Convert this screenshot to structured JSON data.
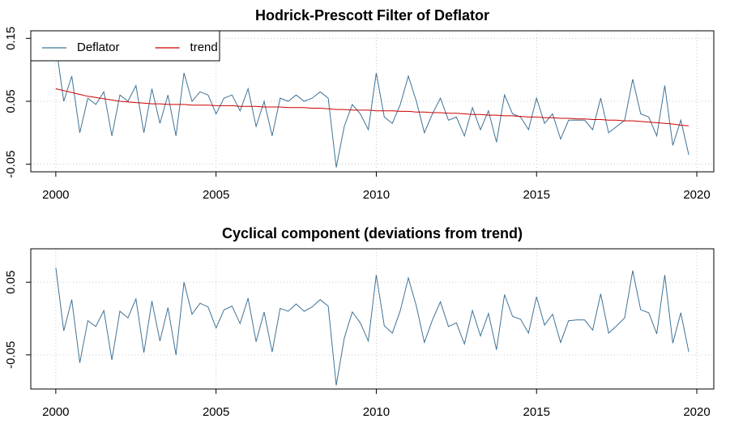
{
  "chart_data": [
    {
      "type": "line",
      "title": "Hodrick-Prescott Filter of Deflator",
      "x": [
        2000,
        2000.25,
        2000.5,
        2000.75,
        2001,
        2001.25,
        2001.5,
        2001.75,
        2002,
        2002.25,
        2002.5,
        2002.75,
        2003,
        2003.25,
        2003.5,
        2003.75,
        2004,
        2004.25,
        2004.5,
        2004.75,
        2005,
        2005.25,
        2005.5,
        2005.75,
        2006,
        2006.25,
        2006.5,
        2006.75,
        2007,
        2007.25,
        2007.5,
        2007.75,
        2008,
        2008.25,
        2008.5,
        2008.75,
        2009,
        2009.25,
        2009.5,
        2009.75,
        2010,
        2010.25,
        2010.5,
        2010.75,
        2011,
        2011.25,
        2011.5,
        2011.75,
        2012,
        2012.25,
        2012.5,
        2012.75,
        2013,
        2013.25,
        2013.5,
        2013.75,
        2014,
        2014.25,
        2014.5,
        2014.75,
        2015,
        2015.25,
        2015.5,
        2015.75,
        2016,
        2016.25,
        2016.5,
        2016.75,
        2017,
        2017.25,
        2017.5,
        2017.75,
        2018,
        2018.25,
        2018.5,
        2018.75,
        2019,
        2019.25,
        2019.5,
        2019.75
      ],
      "series": [
        {
          "name": "Deflator",
          "color": "#3f7396",
          "values": [
            0.14,
            0.05,
            0.09,
            0.0,
            0.055,
            0.045,
            0.065,
            -0.005,
            0.06,
            0.05,
            0.075,
            0.0,
            0.07,
            0.015,
            0.06,
            -0.005,
            0.095,
            0.05,
            0.065,
            0.06,
            0.03,
            0.055,
            0.06,
            0.035,
            0.07,
            0.01,
            0.05,
            -0.005,
            0.055,
            0.05,
            0.06,
            0.05,
            0.055,
            0.065,
            0.055,
            -0.055,
            0.01,
            0.045,
            0.03,
            0.005,
            0.095,
            0.025,
            0.015,
            0.045,
            0.09,
            0.05,
            0.0,
            0.03,
            0.055,
            0.02,
            0.025,
            -0.005,
            0.04,
            0.005,
            0.035,
            -0.015,
            0.06,
            0.03,
            0.025,
            0.005,
            0.055,
            0.015,
            0.03,
            -0.01,
            0.02,
            0.02,
            0.02,
            0.005,
            0.055,
            0.0,
            0.01,
            0.02,
            0.085,
            0.03,
            0.025,
            -0.005,
            0.075,
            -0.02,
            0.02,
            -0.035
          ]
        },
        {
          "name": "trend",
          "color": "#cc0000",
          "values": [
            0.07,
            0.067,
            0.064,
            0.061,
            0.058,
            0.056,
            0.054,
            0.052,
            0.05,
            0.049,
            0.048,
            0.047,
            0.046,
            0.046,
            0.045,
            0.045,
            0.045,
            0.044,
            0.044,
            0.044,
            0.043,
            0.043,
            0.043,
            0.042,
            0.042,
            0.042,
            0.041,
            0.041,
            0.041,
            0.04,
            0.04,
            0.04,
            0.039,
            0.039,
            0.038,
            0.037,
            0.037,
            0.036,
            0.036,
            0.036,
            0.035,
            0.035,
            0.035,
            0.034,
            0.034,
            0.033,
            0.033,
            0.032,
            0.032,
            0.031,
            0.031,
            0.03,
            0.029,
            0.029,
            0.028,
            0.028,
            0.027,
            0.027,
            0.026,
            0.025,
            0.025,
            0.024,
            0.024,
            0.023,
            0.023,
            0.022,
            0.022,
            0.021,
            0.021,
            0.02,
            0.02,
            0.019,
            0.019,
            0.018,
            0.017,
            0.016,
            0.015,
            0.014,
            0.012,
            0.011
          ]
        }
      ],
      "xlim": [
        1999.22,
        2020.53
      ],
      "xticks": [
        2000,
        2005,
        2010,
        2015,
        2020
      ],
      "ylim": [
        -0.062,
        0.162
      ],
      "yticks": [
        -0.05,
        0.05,
        0.15
      ],
      "grid": true,
      "legend": "top-left"
    },
    {
      "type": "line",
      "title": "Cyclical component (deviations from trend)",
      "x": [
        2000,
        2000.25,
        2000.5,
        2000.75,
        2001,
        2001.25,
        2001.5,
        2001.75,
        2002,
        2002.25,
        2002.5,
        2002.75,
        2003,
        2003.25,
        2003.5,
        2003.75,
        2004,
        2004.25,
        2004.5,
        2004.75,
        2005,
        2005.25,
        2005.5,
        2005.75,
        2006,
        2006.25,
        2006.5,
        2006.75,
        2007,
        2007.25,
        2007.5,
        2007.75,
        2008,
        2008.25,
        2008.5,
        2008.75,
        2009,
        2009.25,
        2009.5,
        2009.75,
        2010,
        2010.25,
        2010.5,
        2010.75,
        2011,
        2011.25,
        2011.5,
        2011.75,
        2012,
        2012.25,
        2012.5,
        2012.75,
        2013,
        2013.25,
        2013.5,
        2013.75,
        2014,
        2014.25,
        2014.5,
        2014.75,
        2015,
        2015.25,
        2015.5,
        2015.75,
        2016,
        2016.25,
        2016.5,
        2016.75,
        2017,
        2017.25,
        2017.5,
        2017.75,
        2018,
        2018.25,
        2018.5,
        2018.75,
        2019,
        2019.25,
        2019.5,
        2019.75
      ],
      "color": "#3f7396",
      "values": [
        0.07,
        -0.017,
        0.026,
        -0.061,
        -0.003,
        -0.011,
        0.011,
        -0.057,
        0.01,
        0.001,
        0.027,
        -0.047,
        0.024,
        -0.031,
        0.015,
        -0.05,
        0.05,
        0.006,
        0.021,
        0.016,
        -0.013,
        0.012,
        0.017,
        -0.007,
        0.028,
        -0.032,
        0.009,
        -0.046,
        0.014,
        0.01,
        0.02,
        0.01,
        0.016,
        0.026,
        0.017,
        -0.092,
        -0.027,
        0.009,
        -0.006,
        -0.031,
        0.06,
        -0.01,
        -0.02,
        0.011,
        0.056,
        0.017,
        -0.033,
        -0.002,
        0.023,
        -0.011,
        -0.006,
        -0.035,
        0.011,
        -0.024,
        0.007,
        -0.043,
        0.033,
        0.003,
        -0.001,
        -0.02,
        0.03,
        -0.009,
        0.006,
        -0.033,
        -0.003,
        -0.002,
        -0.002,
        -0.016,
        0.034,
        -0.02,
        -0.01,
        0.001,
        0.066,
        0.012,
        0.008,
        -0.021,
        0.06,
        -0.034,
        0.008,
        -0.046
      ],
      "xlim": [
        1999.22,
        2020.53
      ],
      "xticks": [
        2000,
        2005,
        2010,
        2015,
        2020
      ],
      "ylim": [
        -0.097,
        0.096
      ],
      "yticks": [
        -0.05,
        0.05
      ],
      "grid": true
    }
  ]
}
